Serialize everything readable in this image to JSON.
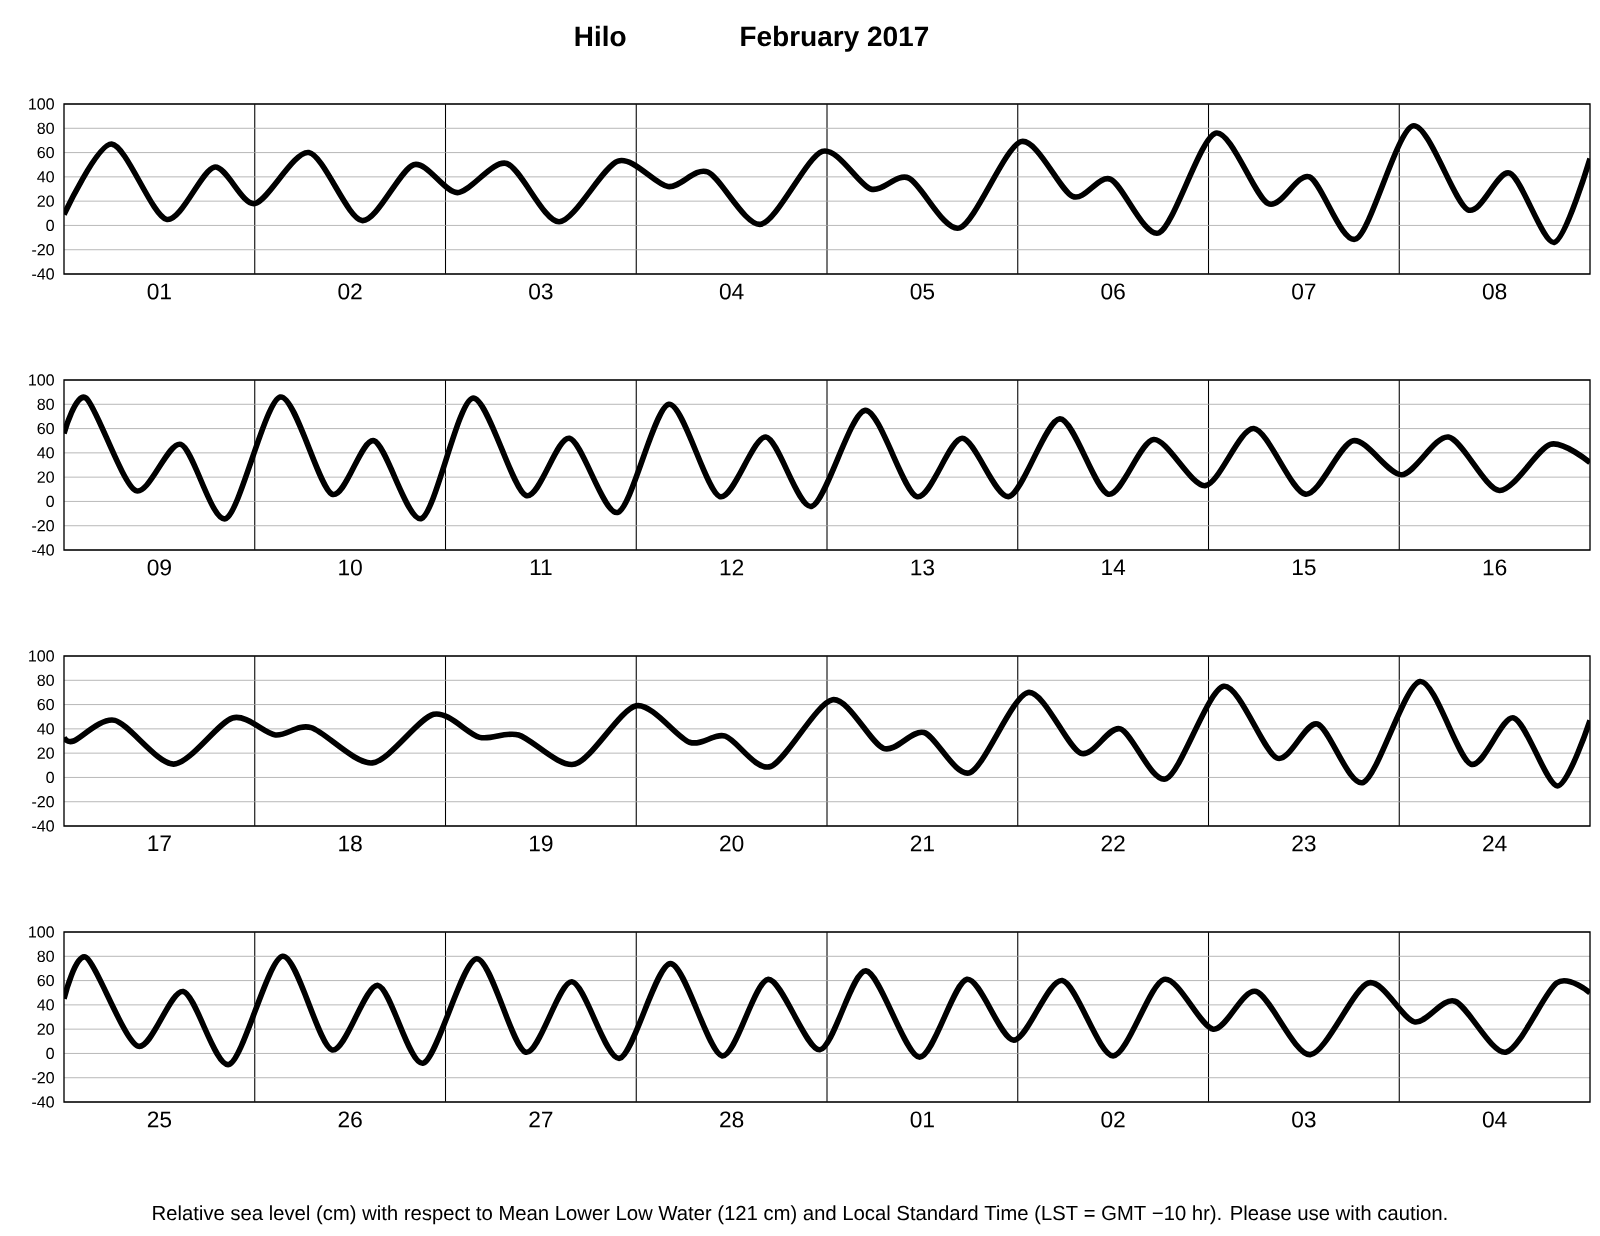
{
  "chart_data": [
    {
      "type": "line",
      "title": "Hilo",
      "subtitle": "February   2017",
      "color": "#000000",
      "xlim": [
        "2017-02-01T00:00",
        "2017-02-09T00:00"
      ],
      "ylim": [
        -40,
        100
      ],
      "yticks": [
        -40,
        -20,
        0,
        20,
        40,
        60,
        80,
        100
      ],
      "grid": true,
      "xticks": [
        {
          "value": "2017-02-01T12:00",
          "label": "01"
        },
        {
          "value": "2017-02-02T12:00",
          "label": "02"
        },
        {
          "value": "2017-02-03T12:00",
          "label": "03"
        },
        {
          "value": "2017-02-04T12:00",
          "label": "04"
        },
        {
          "value": "2017-02-05T12:00",
          "label": "05"
        },
        {
          "value": "2017-02-06T12:00",
          "label": "06"
        },
        {
          "value": "2017-02-07T12:00",
          "label": "07"
        },
        {
          "value": "2017-02-08T12:00",
          "label": "08"
        },
        {
          "value": "2017-02-02T00:00",
          "label": null
        },
        {
          "value": "2017-02-03T00:00",
          "label": null
        },
        {
          "value": "2017-02-04T00:00",
          "label": null
        },
        {
          "value": "2017-02-05T00:00",
          "label": null
        },
        {
          "value": "2017-02-06T00:00",
          "label": null
        },
        {
          "value": "2017-02-07T00:00",
          "label": null
        },
        {
          "value": "2017-02-08T00:00",
          "label": null
        }
      ],
      "x": [
        "2017-02-01T00:00",
        "2017-02-01T06:00",
        "2017-02-01T12:54",
        "2017-02-01T18:54",
        "2017-02-02T00:00",
        "2017-02-02T06:48",
        "2017-02-02T13:30",
        "2017-02-02T20:00",
        "2017-02-03T01:30",
        "2017-02-03T07:42",
        "2017-02-03T14:18",
        "2017-02-03T21:42",
        "2017-02-04T04:00",
        "2017-02-04T09:00",
        "2017-02-04T15:42",
        "2017-02-04T23:24",
        "2017-02-05T05:30",
        "2017-02-05T10:18",
        "2017-02-05T16:42",
        "2017-02-06T00:24",
        "2017-02-06T06:54",
        "2017-02-06T11:42",
        "2017-02-06T17:48",
        "2017-02-07T00:54",
        "2017-02-07T07:30",
        "2017-02-07T12:42",
        "2017-02-07T18:36",
        "2017-02-08T01:42",
        "2017-02-08T08:36",
        "2017-02-08T13:54",
        "2017-02-08T19:30",
        "2017-02-09T00:00"
      ],
      "values": [
        9,
        67,
        5,
        48,
        18,
        60,
        4,
        50,
        27,
        51,
        3,
        53,
        32,
        44,
        1,
        61,
        30,
        39,
        -2,
        69,
        24,
        38,
        -6,
        76,
        18,
        40,
        -11,
        82,
        13,
        43,
        -14,
        55
      ]
    },
    {
      "type": "line",
      "color": "#000000",
      "xlim": [
        "2017-02-09T00:00",
        "2017-02-17T00:00"
      ],
      "ylim": [
        -40,
        100
      ],
      "yticks": [
        -40,
        -20,
        0,
        20,
        40,
        60,
        80,
        100
      ],
      "grid": true,
      "xticks": [
        {
          "value": "2017-02-09T12:00",
          "label": "09"
        },
        {
          "value": "2017-02-10T12:00",
          "label": "10"
        },
        {
          "value": "2017-02-11T12:00",
          "label": "11"
        },
        {
          "value": "2017-02-12T12:00",
          "label": "12"
        },
        {
          "value": "2017-02-13T12:00",
          "label": "13"
        },
        {
          "value": "2017-02-14T12:00",
          "label": "14"
        },
        {
          "value": "2017-02-15T12:00",
          "label": "15"
        },
        {
          "value": "2017-02-16T12:00",
          "label": "16"
        },
        {
          "value": "2017-02-10T00:00",
          "label": null
        },
        {
          "value": "2017-02-11T00:00",
          "label": null
        },
        {
          "value": "2017-02-12T00:00",
          "label": null
        },
        {
          "value": "2017-02-13T00:00",
          "label": null
        },
        {
          "value": "2017-02-14T00:00",
          "label": null
        },
        {
          "value": "2017-02-15T00:00",
          "label": null
        },
        {
          "value": "2017-02-16T00:00",
          "label": null
        }
      ],
      "x": [
        "2017-02-09T00:00",
        "2017-02-09T02:48",
        "2017-02-09T09:00",
        "2017-02-09T14:42",
        "2017-02-09T20:24",
        "2017-02-10T03:12",
        "2017-02-10T09:42",
        "2017-02-10T15:00",
        "2017-02-10T21:00",
        "2017-02-11T03:24",
        "2017-02-11T10:06",
        "2017-02-11T15:36",
        "2017-02-11T21:42",
        "2017-02-12T04:06",
        "2017-02-12T10:30",
        "2017-02-12T16:18",
        "2017-02-12T22:06",
        "2017-02-13T04:48",
        "2017-02-13T11:18",
        "2017-02-13T17:00",
        "2017-02-13T22:54",
        "2017-02-14T05:18",
        "2017-02-14T11:24",
        "2017-02-14T17:06",
        "2017-02-14T23:36",
        "2017-02-15T05:42",
        "2017-02-15T12:12",
        "2017-02-15T18:12",
        "2017-02-16T00:18",
        "2017-02-16T06:12",
        "2017-02-16T12:36",
        "2017-02-16T19:00",
        "2017-02-17T00:00"
      ],
      "values": [
        56,
        85,
        9,
        47,
        -14,
        86,
        6,
        50,
        -14,
        85,
        5,
        52,
        -9,
        80,
        4,
        53,
        -4,
        75,
        4,
        52,
        4,
        68,
        6,
        51,
        13,
        60,
        6,
        50,
        22,
        53,
        9,
        47,
        32
      ]
    },
    {
      "type": "line",
      "color": "#000000",
      "xlim": [
        "2017-02-17T00:00",
        "2017-02-25T00:00"
      ],
      "ylim": [
        -40,
        100
      ],
      "yticks": [
        -40,
        -20,
        0,
        20,
        40,
        60,
        80,
        100
      ],
      "grid": true,
      "xticks": [
        {
          "value": "2017-02-17T12:00",
          "label": "17"
        },
        {
          "value": "2017-02-18T12:00",
          "label": "18"
        },
        {
          "value": "2017-02-19T12:00",
          "label": "19"
        },
        {
          "value": "2017-02-20T12:00",
          "label": "20"
        },
        {
          "value": "2017-02-21T12:00",
          "label": "21"
        },
        {
          "value": "2017-02-22T12:00",
          "label": "22"
        },
        {
          "value": "2017-02-23T12:00",
          "label": "23"
        },
        {
          "value": "2017-02-24T12:00",
          "label": "24"
        },
        {
          "value": "2017-02-18T00:00",
          "label": null
        },
        {
          "value": "2017-02-19T00:00",
          "label": null
        },
        {
          "value": "2017-02-20T00:00",
          "label": null
        },
        {
          "value": "2017-02-21T00:00",
          "label": null
        },
        {
          "value": "2017-02-22T00:00",
          "label": null
        },
        {
          "value": "2017-02-23T00:00",
          "label": null
        },
        {
          "value": "2017-02-24T00:00",
          "label": null
        }
      ],
      "x": [
        "2017-02-17T00:00",
        "2017-02-17T01:12",
        "2017-02-17T06:24",
        "2017-02-17T13:48",
        "2017-02-17T21:12",
        "2017-02-18T02:36",
        "2017-02-18T07:06",
        "2017-02-18T14:48",
        "2017-02-18T22:30",
        "2017-02-19T04:18",
        "2017-02-19T09:12",
        "2017-02-19T16:18",
        "2017-02-20T00:00",
        "2017-02-20T06:42",
        "2017-02-20T11:12",
        "2017-02-20T16:54",
        "2017-02-21T00:42",
        "2017-02-21T07:06",
        "2017-02-21T12:12",
        "2017-02-21T18:00",
        "2017-02-22T01:18",
        "2017-02-22T07:54",
        "2017-02-22T12:54",
        "2017-02-22T18:42",
        "2017-02-23T01:54",
        "2017-02-23T08:36",
        "2017-02-23T13:42",
        "2017-02-23T19:30",
        "2017-02-24T02:36",
        "2017-02-24T09:00",
        "2017-02-24T14:24",
        "2017-02-24T19:54",
        "2017-02-25T00:00"
      ],
      "values": [
        33,
        30,
        47,
        11,
        49,
        35,
        41,
        12,
        52,
        33,
        35,
        11,
        59,
        29,
        34,
        9,
        64,
        24,
        37,
        4,
        70,
        20,
        40,
        -1,
        75,
        16,
        44,
        -4,
        79,
        11,
        49,
        -7,
        47
      ]
    },
    {
      "type": "line",
      "color": "#000000",
      "xlim": [
        "2017-02-25T00:00",
        "2017-03-05T00:00"
      ],
      "ylim": [
        -40,
        100
      ],
      "yticks": [
        -40,
        -20,
        0,
        20,
        40,
        60,
        80,
        100
      ],
      "grid": true,
      "xticks": [
        {
          "value": "2017-02-25T12:00",
          "label": "25"
        },
        {
          "value": "2017-02-26T12:00",
          "label": "26"
        },
        {
          "value": "2017-02-27T12:00",
          "label": "27"
        },
        {
          "value": "2017-02-28T12:00",
          "label": "28"
        },
        {
          "value": "2017-03-01T12:00",
          "label": "01"
        },
        {
          "value": "2017-03-02T12:00",
          "label": "02"
        },
        {
          "value": "2017-03-03T12:00",
          "label": "03"
        },
        {
          "value": "2017-03-04T12:00",
          "label": "04"
        },
        {
          "value": "2017-02-26T00:00",
          "label": null
        },
        {
          "value": "2017-02-27T00:00",
          "label": null
        },
        {
          "value": "2017-02-28T00:00",
          "label": null
        },
        {
          "value": "2017-03-01T00:00",
          "label": null
        },
        {
          "value": "2017-03-02T00:00",
          "label": null
        },
        {
          "value": "2017-03-03T00:00",
          "label": null
        },
        {
          "value": "2017-03-04T00:00",
          "label": null
        }
      ],
      "x": [
        "2017-02-25T00:00",
        "2017-02-25T02:48",
        "2017-02-25T09:18",
        "2017-02-25T15:00",
        "2017-02-25T20:48",
        "2017-02-26T03:30",
        "2017-02-26T09:42",
        "2017-02-26T15:30",
        "2017-02-26T21:12",
        "2017-02-27T03:54",
        "2017-02-27T10:06",
        "2017-02-27T15:54",
        "2017-02-27T21:54",
        "2017-02-28T04:18",
        "2017-02-28T10:48",
        "2017-02-28T16:36",
        "2017-02-28T23:06",
        "2017-03-01T04:54",
        "2017-03-01T11:36",
        "2017-03-01T17:36",
        "2017-03-01T23:30",
        "2017-03-02T05:36",
        "2017-03-02T12:00",
        "2017-03-02T18:24",
        "2017-03-03T00:36",
        "2017-03-03T06:00",
        "2017-03-03T12:48",
        "2017-03-03T20:06",
        "2017-03-04T01:54",
        "2017-03-04T07:00",
        "2017-03-04T13:24",
        "2017-03-04T19:48",
        "2017-03-05T00:00"
      ],
      "values": [
        45,
        79,
        6,
        51,
        -9,
        80,
        3,
        56,
        -8,
        78,
        1,
        59,
        -4,
        74,
        -2,
        61,
        3,
        68,
        -3,
        61,
        11,
        60,
        -2,
        61,
        20,
        51,
        -1,
        58,
        26,
        43,
        1,
        58,
        50
      ],
      "annotations": [
        "Relative sea level (cm) with respect to Mean Lower Low Water (121 cm) and Local Standard Time (LST = GMT −10 hr). Please use with caution."
      ]
    }
  ]
}
